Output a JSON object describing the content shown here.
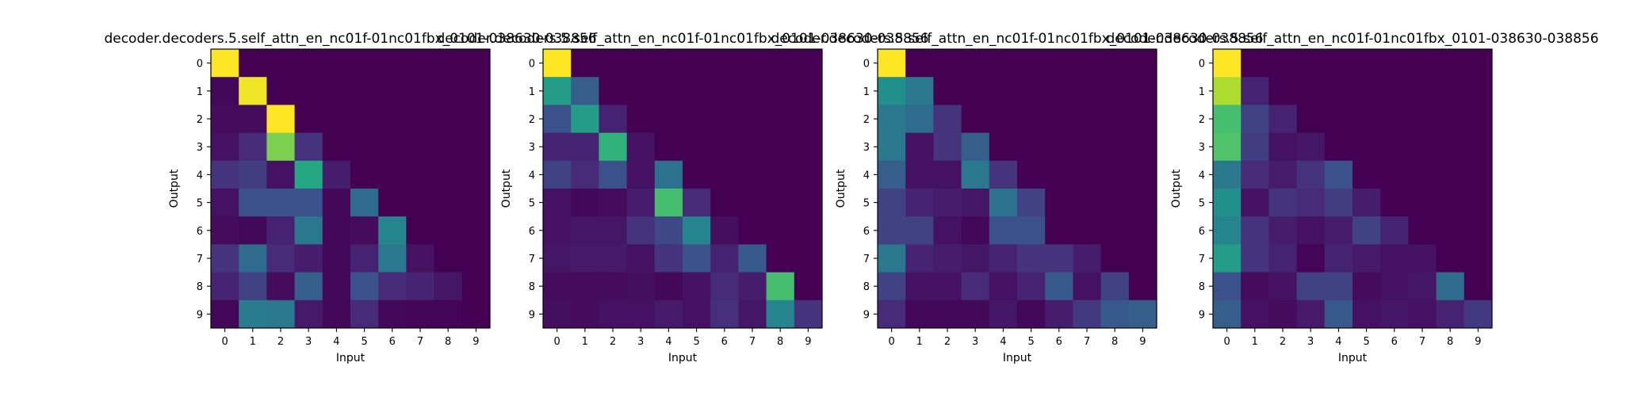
{
  "figure": {
    "colors": {
      "background": "#ffffff",
      "colormap": "viridis"
    }
  },
  "chart_data": [
    {
      "type": "heatmap",
      "title": "decoder.decoders.5.self_attn_en_nc01f-01nc01fbx_0101-038630-038856",
      "xlabel": "Input",
      "ylabel": "Output",
      "xticks": [
        "0",
        "1",
        "2",
        "3",
        "4",
        "5",
        "6",
        "7",
        "8",
        "9"
      ],
      "yticks": [
        "0",
        "1",
        "2",
        "3",
        "4",
        "5",
        "6",
        "7",
        "8",
        "9"
      ],
      "vmin": 0,
      "vmax": 1,
      "values": [
        [
          1.0,
          0.0,
          0.0,
          0.0,
          0.0,
          0.0,
          0.0,
          0.0,
          0.0,
          0.0
        ],
        [
          0.02,
          0.98,
          0.0,
          0.0,
          0.0,
          0.0,
          0.0,
          0.0,
          0.0,
          0.0
        ],
        [
          0.03,
          0.03,
          1.0,
          0.0,
          0.0,
          0.0,
          0.0,
          0.0,
          0.0,
          0.0
        ],
        [
          0.05,
          0.12,
          0.8,
          0.15,
          0.0,
          0.0,
          0.0,
          0.0,
          0.0,
          0.0
        ],
        [
          0.15,
          0.18,
          0.05,
          0.6,
          0.08,
          0.0,
          0.0,
          0.0,
          0.0,
          0.0
        ],
        [
          0.05,
          0.25,
          0.25,
          0.25,
          0.02,
          0.35,
          0.0,
          0.0,
          0.0,
          0.0
        ],
        [
          0.03,
          0.02,
          0.1,
          0.4,
          0.02,
          0.03,
          0.45,
          0.0,
          0.0,
          0.0
        ],
        [
          0.15,
          0.35,
          0.12,
          0.08,
          0.02,
          0.1,
          0.4,
          0.05,
          0.0,
          0.0
        ],
        [
          0.1,
          0.2,
          0.03,
          0.3,
          0.02,
          0.25,
          0.12,
          0.1,
          0.06,
          0.0
        ],
        [
          0.02,
          0.42,
          0.4,
          0.07,
          0.02,
          0.12,
          0.02,
          0.01,
          0.01,
          0.0
        ]
      ]
    },
    {
      "type": "heatmap",
      "title": "decoder.decoders.5.self_attn_en_nc01f-01nc01fbx_0101-038630-038856",
      "xlabel": "Input",
      "ylabel": "Output",
      "xticks": [
        "0",
        "1",
        "2",
        "3",
        "4",
        "5",
        "6",
        "7",
        "8",
        "9"
      ],
      "yticks": [
        "0",
        "1",
        "2",
        "3",
        "4",
        "5",
        "6",
        "7",
        "8",
        "9"
      ],
      "vmin": 0,
      "vmax": 1,
      "values": [
        [
          1.0,
          0.0,
          0.0,
          0.0,
          0.0,
          0.0,
          0.0,
          0.0,
          0.0,
          0.0
        ],
        [
          0.55,
          0.3,
          0.0,
          0.0,
          0.0,
          0.0,
          0.0,
          0.0,
          0.0,
          0.0
        ],
        [
          0.25,
          0.55,
          0.1,
          0.0,
          0.0,
          0.0,
          0.0,
          0.0,
          0.0,
          0.0
        ],
        [
          0.1,
          0.1,
          0.65,
          0.05,
          0.0,
          0.0,
          0.0,
          0.0,
          0.0,
          0.0
        ],
        [
          0.2,
          0.12,
          0.25,
          0.05,
          0.38,
          0.0,
          0.0,
          0.0,
          0.0,
          0.0
        ],
        [
          0.05,
          0.02,
          0.03,
          0.08,
          0.7,
          0.12,
          0.0,
          0.0,
          0.0,
          0.0
        ],
        [
          0.05,
          0.06,
          0.06,
          0.15,
          0.22,
          0.45,
          0.04,
          0.0,
          0.0,
          0.0
        ],
        [
          0.06,
          0.07,
          0.07,
          0.05,
          0.15,
          0.25,
          0.1,
          0.28,
          0.0,
          0.0
        ],
        [
          0.03,
          0.03,
          0.03,
          0.04,
          0.02,
          0.05,
          0.12,
          0.08,
          0.7,
          0.0
        ],
        [
          0.04,
          0.03,
          0.05,
          0.05,
          0.07,
          0.05,
          0.14,
          0.06,
          0.45,
          0.15
        ]
      ]
    },
    {
      "type": "heatmap",
      "title": "decoder.decoders.5.self_attn_en_nc01f-01nc01fbx_0101-038630-038856",
      "xlabel": "Input",
      "ylabel": "Output",
      "xticks": [
        "0",
        "1",
        "2",
        "3",
        "4",
        "5",
        "6",
        "7",
        "8",
        "9"
      ],
      "yticks": [
        "0",
        "1",
        "2",
        "3",
        "4",
        "5",
        "6",
        "7",
        "8",
        "9"
      ],
      "vmin": 0,
      "vmax": 1,
      "values": [
        [
          1.0,
          0.0,
          0.0,
          0.0,
          0.0,
          0.0,
          0.0,
          0.0,
          0.0,
          0.0
        ],
        [
          0.5,
          0.4,
          0.0,
          0.0,
          0.0,
          0.0,
          0.0,
          0.0,
          0.0,
          0.0
        ],
        [
          0.4,
          0.35,
          0.15,
          0.0,
          0.0,
          0.0,
          0.0,
          0.0,
          0.0,
          0.0
        ],
        [
          0.4,
          0.05,
          0.15,
          0.3,
          0.0,
          0.0,
          0.0,
          0.0,
          0.0,
          0.0
        ],
        [
          0.3,
          0.05,
          0.05,
          0.4,
          0.15,
          0.0,
          0.0,
          0.0,
          0.0,
          0.0
        ],
        [
          0.2,
          0.1,
          0.08,
          0.06,
          0.38,
          0.2,
          0.0,
          0.0,
          0.0,
          0.0
        ],
        [
          0.2,
          0.2,
          0.05,
          0.02,
          0.25,
          0.25,
          0.0,
          0.0,
          0.0,
          0.0
        ],
        [
          0.4,
          0.1,
          0.08,
          0.06,
          0.1,
          0.15,
          0.15,
          0.08,
          0.0,
          0.0
        ],
        [
          0.2,
          0.05,
          0.05,
          0.12,
          0.05,
          0.1,
          0.28,
          0.05,
          0.2,
          0.0
        ],
        [
          0.12,
          0.02,
          0.02,
          0.02,
          0.06,
          0.02,
          0.08,
          0.17,
          0.28,
          0.3
        ]
      ]
    },
    {
      "type": "heatmap",
      "title": "decoder.decoders.5.self_attn_en_nc01f-01nc01fbx_0101-038630-038856",
      "xlabel": "Input",
      "ylabel": "Output",
      "xticks": [
        "0",
        "1",
        "2",
        "3",
        "4",
        "5",
        "6",
        "7",
        "8",
        "9"
      ],
      "yticks": [
        "0",
        "1",
        "2",
        "3",
        "4",
        "5",
        "6",
        "7",
        "8",
        "9"
      ],
      "vmin": 0,
      "vmax": 1,
      "values": [
        [
          1.0,
          0.0,
          0.0,
          0.0,
          0.0,
          0.0,
          0.0,
          0.0,
          0.0,
          0.0
        ],
        [
          0.88,
          0.1,
          0.0,
          0.0,
          0.0,
          0.0,
          0.0,
          0.0,
          0.0,
          0.0
        ],
        [
          0.7,
          0.2,
          0.1,
          0.0,
          0.0,
          0.0,
          0.0,
          0.0,
          0.0,
          0.0
        ],
        [
          0.72,
          0.18,
          0.05,
          0.06,
          0.0,
          0.0,
          0.0,
          0.0,
          0.0,
          0.0
        ],
        [
          0.4,
          0.12,
          0.08,
          0.15,
          0.25,
          0.0,
          0.0,
          0.0,
          0.0,
          0.0
        ],
        [
          0.5,
          0.05,
          0.15,
          0.12,
          0.18,
          0.08,
          0.0,
          0.0,
          0.0,
          0.0
        ],
        [
          0.45,
          0.15,
          0.08,
          0.05,
          0.08,
          0.2,
          0.1,
          0.0,
          0.0,
          0.0
        ],
        [
          0.55,
          0.15,
          0.1,
          0.01,
          0.1,
          0.07,
          0.05,
          0.05,
          0.0,
          0.0
        ],
        [
          0.25,
          0.03,
          0.05,
          0.2,
          0.2,
          0.03,
          0.05,
          0.06,
          0.35,
          0.0
        ],
        [
          0.3,
          0.05,
          0.03,
          0.07,
          0.28,
          0.05,
          0.06,
          0.05,
          0.1,
          0.17
        ]
      ]
    }
  ]
}
